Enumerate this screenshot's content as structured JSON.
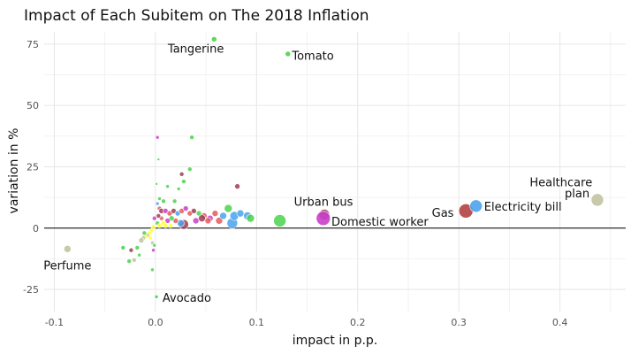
{
  "chart_data": {
    "type": "scatter",
    "title": "Impact of Each Subitem on The 2018 Inflation",
    "xlabel": "impact in p.p.",
    "ylabel": "variation in %",
    "xlim": [
      -0.11,
      0.465
    ],
    "ylim": [
      -34,
      80
    ],
    "x_ticks": [
      {
        "value": -0.1,
        "label": "-0.1"
      },
      {
        "value": 0.0,
        "label": "0.0"
      },
      {
        "value": 0.1,
        "label": "0.1"
      },
      {
        "value": 0.2,
        "label": "0.2"
      },
      {
        "value": 0.3,
        "label": "0.3"
      },
      {
        "value": 0.4,
        "label": "0.4"
      }
    ],
    "y_ticks": [
      {
        "value": -25,
        "label": "-25"
      },
      {
        "value": 0,
        "label": "0"
      },
      {
        "value": 25,
        "label": "25"
      },
      {
        "value": 50,
        "label": "50"
      },
      {
        "value": 75,
        "label": "75"
      }
    ],
    "grid": true,
    "legend": "none",
    "hline": 0,
    "labeled_points": [
      {
        "label": "Tangerine",
        "x": 0.058,
        "y": 77,
        "size": 3,
        "color": "#4cd24c",
        "label_x": 0.04,
        "label_y": 73,
        "anchor": "middle"
      },
      {
        "label": "Tomato",
        "x": 0.131,
        "y": 71,
        "size": 3,
        "color": "#4cd24c",
        "label_x": 0.135,
        "label_y": 70,
        "anchor": "start"
      },
      {
        "label": "Healthcare",
        "x": 0.437,
        "y": 11.5,
        "size": 7,
        "color": "#c2c2a2",
        "label_x": 0.401,
        "label_y": 18.5,
        "anchor": "middle"
      },
      {
        "label": "plan",
        "x": null,
        "y": null,
        "size": 0,
        "color": "",
        "label_x": 0.417,
        "label_y": 14,
        "anchor": "middle"
      },
      {
        "label": "Urban bus",
        "x": 0.167,
        "y": 5.5,
        "size": 6,
        "color": "#9c3e52",
        "label_x": 0.137,
        "label_y": 10.5,
        "anchor": "start"
      },
      {
        "label": "Domestic worker",
        "x": 0.166,
        "y": 4,
        "size": 8,
        "color": "#c93fc9",
        "label_x": 0.174,
        "label_y": 2.5,
        "anchor": "start"
      },
      {
        "label": "Gas",
        "x": 0.307,
        "y": 7,
        "size": 8,
        "color": "#b24242",
        "label_x": 0.295,
        "label_y": 6,
        "anchor": "end"
      },
      {
        "label": "Electricity bill",
        "x": 0.317,
        "y": 9,
        "size": 7,
        "color": "#4aa3ec",
        "label_x": 0.325,
        "label_y": 8.5,
        "anchor": "start"
      },
      {
        "label": "Perfume",
        "x": -0.087,
        "y": -8.5,
        "size": 4,
        "color": "#c2c2a2",
        "label_x": -0.087,
        "label_y": -15.5,
        "anchor": "middle"
      },
      {
        "label": "Avocado",
        "x": 0.001,
        "y": -28,
        "size": 2,
        "color": "#4cd24c",
        "label_x": 0.007,
        "label_y": -28.5,
        "anchor": "start"
      }
    ],
    "points": [
      {
        "x": 0.002,
        "y": 37,
        "size": 2,
        "color": "#c93fc9"
      },
      {
        "x": 0.036,
        "y": 37,
        "size": 2.5,
        "color": "#4cd24c"
      },
      {
        "x": 0.034,
        "y": 24,
        "size": 2.5,
        "color": "#4cd24c"
      },
      {
        "x": 0.026,
        "y": 22,
        "size": 2.5,
        "color": "#9c3e52"
      },
      {
        "x": 0.003,
        "y": 28,
        "size": 1.5,
        "color": "#4cd24c"
      },
      {
        "x": 0.001,
        "y": 18,
        "size": 1.5,
        "color": "#4cd24c"
      },
      {
        "x": 0.012,
        "y": 17,
        "size": 2,
        "color": "#4cd24c"
      },
      {
        "x": 0.023,
        "y": 16,
        "size": 2,
        "color": "#4cd24c"
      },
      {
        "x": 0.028,
        "y": 19,
        "size": 2.5,
        "color": "#4cd24c"
      },
      {
        "x": 0.081,
        "y": 17,
        "size": 3,
        "color": "#9c3e52"
      },
      {
        "x": 0.004,
        "y": 12,
        "size": 2,
        "color": "#4cd24c"
      },
      {
        "x": 0.002,
        "y": 10,
        "size": 2,
        "color": "#4aa3ec"
      },
      {
        "x": 0.008,
        "y": 11,
        "size": 2.5,
        "color": "#4cd24c"
      },
      {
        "x": 0.019,
        "y": 11,
        "size": 2.5,
        "color": "#4cd24c"
      },
      {
        "x": 0.004,
        "y": 8,
        "size": 2.5,
        "color": "#e65a5a"
      },
      {
        "x": 0.006,
        "y": 7,
        "size": 3,
        "color": "#9c3e52"
      },
      {
        "x": 0.01,
        "y": 7,
        "size": 3,
        "color": "#c93fc9"
      },
      {
        "x": 0.014,
        "y": 6,
        "size": 3,
        "color": "#e65a5a"
      },
      {
        "x": 0.018,
        "y": 7,
        "size": 3,
        "color": "#9c3e52"
      },
      {
        "x": 0.022,
        "y": 6,
        "size": 3,
        "color": "#4aa3ec"
      },
      {
        "x": 0.026,
        "y": 7,
        "size": 3,
        "color": "#e65a5a"
      },
      {
        "x": 0.03,
        "y": 8,
        "size": 3,
        "color": "#c93fc9"
      },
      {
        "x": 0.034,
        "y": 6,
        "size": 3,
        "color": "#e65a5a"
      },
      {
        "x": 0.038,
        "y": 7,
        "size": 3,
        "color": "#9c3e52"
      },
      {
        "x": 0.043,
        "y": 6,
        "size": 3,
        "color": "#4cd24c"
      },
      {
        "x": 0.048,
        "y": 5,
        "size": 3.5,
        "color": "#e65a5a"
      },
      {
        "x": 0.054,
        "y": 4,
        "size": 3.5,
        "color": "#c93fc9"
      },
      {
        "x": 0.059,
        "y": 6,
        "size": 3.5,
        "color": "#e65a5a"
      },
      {
        "x": 0.063,
        "y": 3,
        "size": 4,
        "color": "#e65a5a"
      },
      {
        "x": 0.067,
        "y": 5,
        "size": 4,
        "color": "#4aa3ec"
      },
      {
        "x": 0.072,
        "y": 8,
        "size": 4.5,
        "color": "#4cd24c"
      },
      {
        "x": 0.076,
        "y": 2,
        "size": 6,
        "color": "#4aa3ec"
      },
      {
        "x": 0.078,
        "y": 5,
        "size": 5,
        "color": "#4aa3ec"
      },
      {
        "x": 0.084,
        "y": 6,
        "size": 4,
        "color": "#4aa3ec"
      },
      {
        "x": 0.091,
        "y": 5,
        "size": 4.5,
        "color": "#4aa3ec"
      },
      {
        "x": 0.094,
        "y": 4,
        "size": 4.5,
        "color": "#4cd24c"
      },
      {
        "x": 0.046,
        "y": 4,
        "size": 4,
        "color": "#9c3e52"
      },
      {
        "x": 0.052,
        "y": 3,
        "size": 3.5,
        "color": "#e65a5a"
      },
      {
        "x": 0.04,
        "y": 3,
        "size": 3.5,
        "color": "#c93fc9"
      },
      {
        "x": 0.028,
        "y": 1.5,
        "size": 5.5,
        "color": "#9c3e52"
      },
      {
        "x": 0.025,
        "y": 2,
        "size": 4,
        "color": "#4aa3ec"
      },
      {
        "x": 0.02,
        "y": 3,
        "size": 3,
        "color": "#e65a5a"
      },
      {
        "x": 0.016,
        "y": 4,
        "size": 3,
        "color": "#4cd24c"
      },
      {
        "x": 0.012,
        "y": 3,
        "size": 3,
        "color": "#c93fc9"
      },
      {
        "x": 0.008,
        "y": 2,
        "size": 3,
        "color": "#ffff33"
      },
      {
        "x": 0.006,
        "y": 4,
        "size": 2.5,
        "color": "#e65a5a"
      },
      {
        "x": 0.003,
        "y": 5,
        "size": 2.5,
        "color": "#9c3e52"
      },
      {
        "x": 0.002,
        "y": 2,
        "size": 2.5,
        "color": "#4cd24c"
      },
      {
        "x": 0.004,
        "y": 1,
        "size": 2.5,
        "color": "#ffff33"
      },
      {
        "x": 0.01,
        "y": 1,
        "size": 2.5,
        "color": "#ffff33"
      },
      {
        "x": 0.015,
        "y": 1,
        "size": 2.5,
        "color": "#ffff33"
      },
      {
        "x": 0.123,
        "y": 3,
        "size": 7,
        "color": "#4cd24c"
      },
      {
        "x": -0.001,
        "y": 4,
        "size": 2.5,
        "color": "#c93fc9"
      },
      {
        "x": -0.002,
        "y": 0.5,
        "size": 2.5,
        "color": "#ffff33"
      },
      {
        "x": -0.004,
        "y": -1,
        "size": 2.5,
        "color": "#ffff33"
      },
      {
        "x": -0.006,
        "y": -2,
        "size": 2.5,
        "color": "#ffff33"
      },
      {
        "x": -0.008,
        "y": -3,
        "size": 2.5,
        "color": "#c2c2a2"
      },
      {
        "x": -0.01,
        "y": -3.5,
        "size": 2.5,
        "color": "#ffff33"
      },
      {
        "x": -0.011,
        "y": -2,
        "size": 2.5,
        "color": "#4cd24c"
      },
      {
        "x": -0.012,
        "y": -4,
        "size": 2.5,
        "color": "#c2c2a2"
      },
      {
        "x": -0.014,
        "y": -5,
        "size": 3,
        "color": "#c2c2a2"
      },
      {
        "x": -0.005,
        "y": -4,
        "size": 2,
        "color": "#ffff33"
      },
      {
        "x": -0.003,
        "y": -6,
        "size": 2,
        "color": "#c2c2a2"
      },
      {
        "x": -0.001,
        "y": -7,
        "size": 2,
        "color": "#4cd24c"
      },
      {
        "x": -0.002,
        "y": -9,
        "size": 2,
        "color": "#c93fc9"
      },
      {
        "x": -0.018,
        "y": -8,
        "size": 2.5,
        "color": "#4cd24c"
      },
      {
        "x": -0.024,
        "y": -9,
        "size": 2.5,
        "color": "#9c3e52"
      },
      {
        "x": -0.032,
        "y": -8,
        "size": 2.5,
        "color": "#4cd24c"
      },
      {
        "x": -0.021,
        "y": -13,
        "size": 2.5,
        "color": "#c2c2a2"
      },
      {
        "x": -0.026,
        "y": -13.5,
        "size": 2.5,
        "color": "#4cd24c"
      },
      {
        "x": -0.003,
        "y": -17,
        "size": 2,
        "color": "#4cd24c"
      },
      {
        "x": -0.016,
        "y": -11,
        "size": 2,
        "color": "#4cd24c"
      }
    ]
  }
}
